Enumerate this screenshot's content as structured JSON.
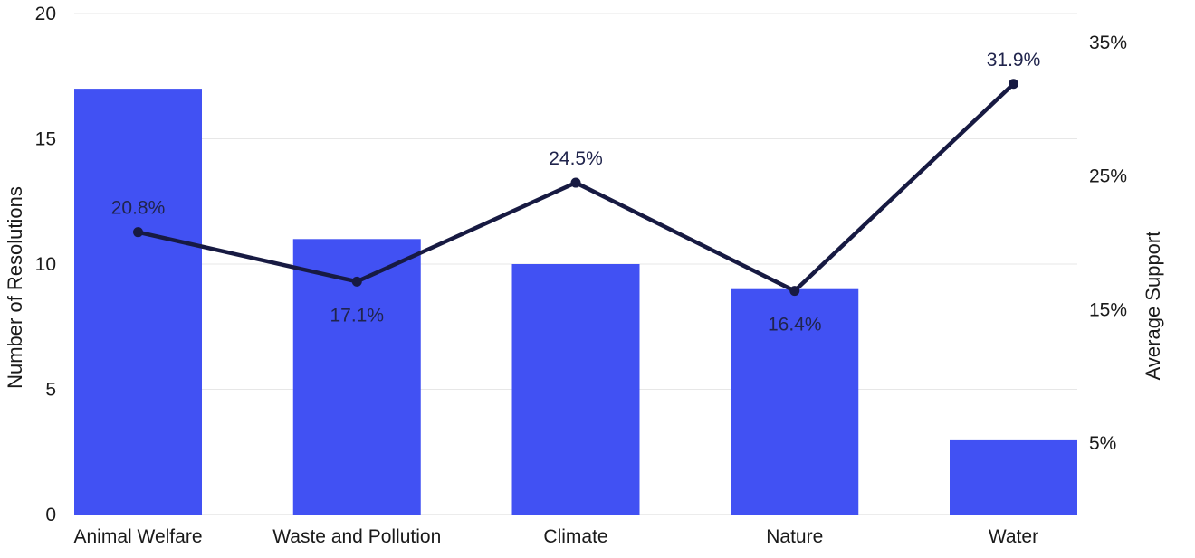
{
  "chart_data": {
    "type": "bar",
    "subtype": "bar-line-combo",
    "categories": [
      "Animal Welfare",
      "Waste and Pollution",
      "Climate",
      "Nature",
      "Water"
    ],
    "series": [
      {
        "name": "Number of Resolutions",
        "type": "bar",
        "axis": "left",
        "values": [
          17,
          11,
          10,
          9,
          3
        ],
        "color": "#4151F3"
      },
      {
        "name": "Average Support",
        "type": "line",
        "axis": "right",
        "values": [
          20.8,
          17.1,
          24.5,
          16.4,
          31.9
        ],
        "labels": [
          "20.8%",
          "17.1%",
          "24.5%",
          "16.4%",
          "31.9%"
        ],
        "label_placement": [
          "above",
          "below",
          "above",
          "below",
          "above"
        ],
        "color": "#171A42"
      }
    ],
    "left_axis": {
      "title": "Number of Resolutions",
      "range": [
        0,
        20
      ],
      "ticks": [
        0,
        5,
        10,
        15,
        20
      ],
      "tick_labels": [
        "0",
        "5",
        "10",
        "15",
        "20"
      ]
    },
    "right_axis": {
      "title": "Average Support",
      "range": [
        5,
        35
      ],
      "ticks": [
        5,
        15,
        25,
        35
      ],
      "tick_labels": [
        "5%",
        "15%",
        "25%",
        "35%"
      ]
    },
    "grid": {
      "horizontal": true
    },
    "legend_position": "none",
    "colors": {
      "bar": "#4151F3",
      "line": "#171A42",
      "data_label": "#20244C",
      "axis_text": "#1A1A1A",
      "grid_line": "#E7E7E7",
      "baseline": "#D9D9D9",
      "background": "#FFFFFF"
    }
  }
}
